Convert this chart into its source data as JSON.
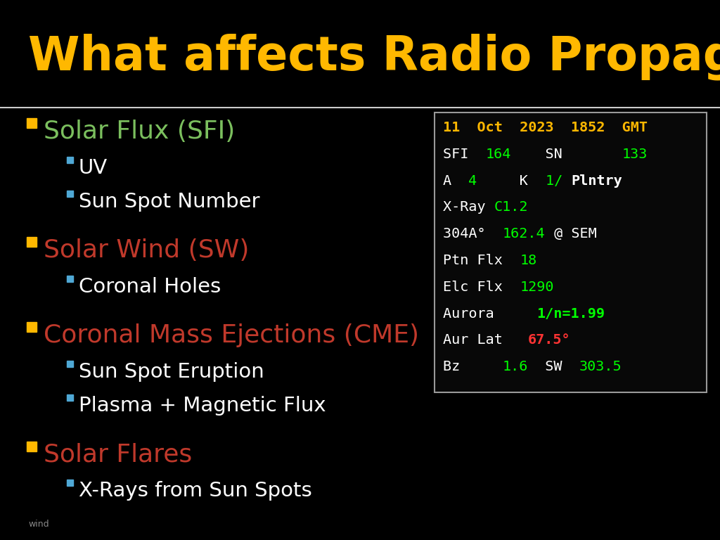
{
  "title": "What affects Radio Propagation?",
  "title_color": "#FFB800",
  "title_fontsize": 48,
  "bg_color": "#000000",
  "divider_color": "#CCCCCC",
  "bullet_color": "#FFB800",
  "sub_bullet_color": "#4FA8D5",
  "bullet_items": [
    {
      "text": "Solar Flux (SFI)",
      "color": "#7BBF5E",
      "sub_items": [
        {
          "text": "UV",
          "color": "#FFFFFF"
        },
        {
          "text": "Sun Spot Number",
          "color": "#FFFFFF"
        }
      ]
    },
    {
      "text": "Solar Wind (SW)",
      "color": "#C0392B",
      "sub_items": [
        {
          "text": "Coronal Holes",
          "color": "#FFFFFF"
        }
      ]
    },
    {
      "text": "Coronal Mass Ejections (CME)",
      "color": "#C0392B",
      "sub_items": [
        {
          "text": "Sun Spot Eruption",
          "color": "#FFFFFF"
        },
        {
          "text": "Plasma + Magnetic Flux",
          "color": "#FFFFFF"
        }
      ]
    },
    {
      "text": "Solar Flares",
      "color": "#C0392B",
      "sub_items": [
        {
          "text": "X-Rays from Sun Spots",
          "color": "#FFFFFF"
        }
      ]
    }
  ],
  "footer_text": "wind",
  "panel_lines": [
    [
      {
        "text": "11  Oct  2023  1852  GMT",
        "color": "#FFB800",
        "bold": true
      }
    ],
    [
      {
        "text": "SFI  ",
        "color": "#FFFFFF",
        "bold": false
      },
      {
        "text": "164",
        "color": "#00FF00",
        "bold": false
      },
      {
        "text": "    SN       ",
        "color": "#FFFFFF",
        "bold": false
      },
      {
        "text": "133",
        "color": "#00FF00",
        "bold": false
      }
    ],
    [
      {
        "text": "A  ",
        "color": "#FFFFFF",
        "bold": false
      },
      {
        "text": "4",
        "color": "#00FF00",
        "bold": false
      },
      {
        "text": "     K  ",
        "color": "#FFFFFF",
        "bold": false
      },
      {
        "text": "1/ ",
        "color": "#00FF00",
        "bold": false
      },
      {
        "text": "Plntry",
        "color": "#FFFFFF",
        "bold": true
      }
    ],
    [
      {
        "text": "X-Ray ",
        "color": "#FFFFFF",
        "bold": false
      },
      {
        "text": "C1.2",
        "color": "#00FF00",
        "bold": false
      }
    ],
    [
      {
        "text": "304A°  ",
        "color": "#FFFFFF",
        "bold": false
      },
      {
        "text": "162.4",
        "color": "#00FF00",
        "bold": false
      },
      {
        "text": " @ SEM",
        "color": "#FFFFFF",
        "bold": false
      }
    ],
    [
      {
        "text": "Ptn Flx  ",
        "color": "#FFFFFF",
        "bold": false
      },
      {
        "text": "18",
        "color": "#00FF00",
        "bold": false
      }
    ],
    [
      {
        "text": "Elc Flx  ",
        "color": "#FFFFFF",
        "bold": false
      },
      {
        "text": "1290",
        "color": "#00FF00",
        "bold": false
      }
    ],
    [
      {
        "text": "Aurora     ",
        "color": "#FFFFFF",
        "bold": false
      },
      {
        "text": "1/n=1.99",
        "color": "#00FF00",
        "bold": true
      }
    ],
    [
      {
        "text": "Aur Lat   ",
        "color": "#FFFFFF",
        "bold": false
      },
      {
        "text": "67.5°",
        "color": "#FF3333",
        "bold": true
      }
    ],
    [
      {
        "text": "Bz     ",
        "color": "#FFFFFF",
        "bold": false
      },
      {
        "text": "1.6",
        "color": "#00FF00",
        "bold": false
      },
      {
        "text": "  SW  ",
        "color": "#FFFFFF",
        "bold": false
      },
      {
        "text": "303.5",
        "color": "#00FF00",
        "bold": false
      }
    ]
  ]
}
